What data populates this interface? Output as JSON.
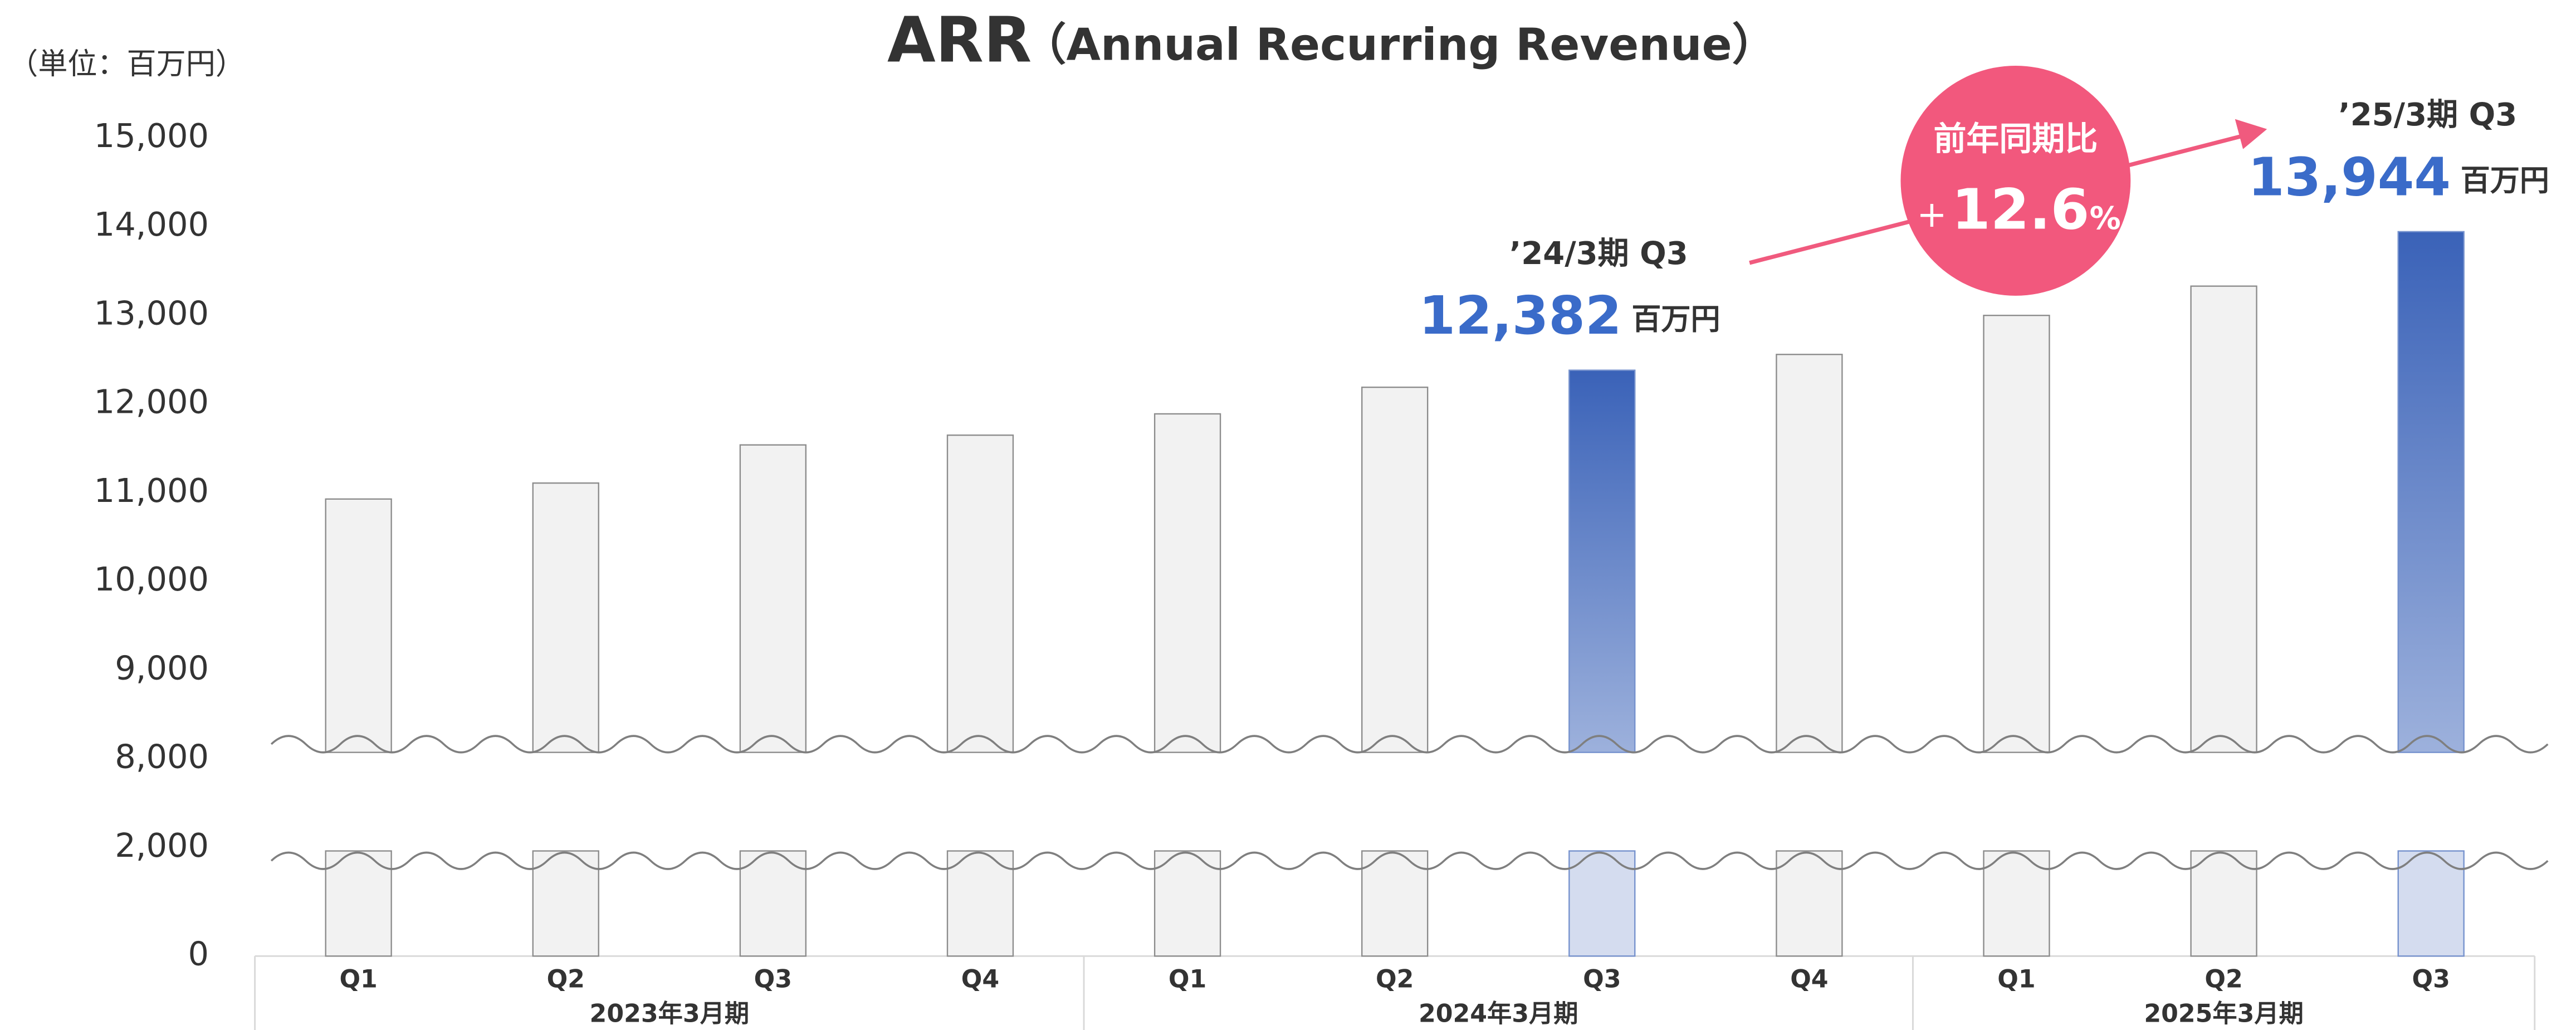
{
  "chart_data": {
    "type": "bar",
    "title": "ARR",
    "subtitle": "（Annual Recurring Revenue）",
    "unit_label": "（単位：百万円）",
    "groups": [
      {
        "name": "2023年3月期",
        "categories": [
          "Q1",
          "Q2",
          "Q3",
          "Q4"
        ]
      },
      {
        "name": "2024年3月期",
        "categories": [
          "Q1",
          "Q2",
          "Q3",
          "Q4"
        ]
      },
      {
        "name": "2025年3月期",
        "categories": [
          "Q1",
          "Q2",
          "Q3"
        ]
      }
    ],
    "values": [
      10930,
      11110,
      11540,
      11650,
      11890,
      12190,
      12382,
      12560,
      13000,
      13330,
      13944
    ],
    "colors": [
      "#f2f2f2",
      "#f2f2f2",
      "#f2f2f2",
      "#f2f2f2",
      "#f2f2f2",
      "#f2f2f2",
      "#3a62b8",
      "#f2f2f2",
      "#f2f2f2",
      "#f2f2f2",
      "#3a62b8"
    ],
    "value_labels": [
      null,
      null,
      null,
      null,
      null,
      null,
      "12,382",
      null,
      null,
      null,
      "13,944"
    ],
    "value_label_titles": [
      null,
      null,
      null,
      null,
      null,
      null,
      "’24/3期 Q3",
      null,
      null,
      null,
      "’25/3期 Q3"
    ],
    "value_label_unit": "百万円",
    "growth": {
      "label": "前年同期比",
      "sign": "+",
      "value": "12.6",
      "unit": "%"
    },
    "ylim": [
      0,
      15000
    ],
    "axis_break": [
      2000,
      8000
    ],
    "yticks": [
      0,
      {
        "value": 2000,
        "label": "2,000"
      },
      {
        "value": 8000,
        "label": "8,000"
      },
      {
        "value": 9000,
        "label": "9,000"
      },
      {
        "value": 10000,
        "label": "10,000"
      },
      {
        "value": 11000,
        "label": "11,000"
      },
      {
        "value": 12000,
        "label": "12,000"
      },
      {
        "value": 13000,
        "label": "13,000"
      },
      {
        "value": 14000,
        "label": "14,000"
      },
      {
        "value": 15000,
        "label": "15,000"
      }
    ],
    "grid": false
  }
}
